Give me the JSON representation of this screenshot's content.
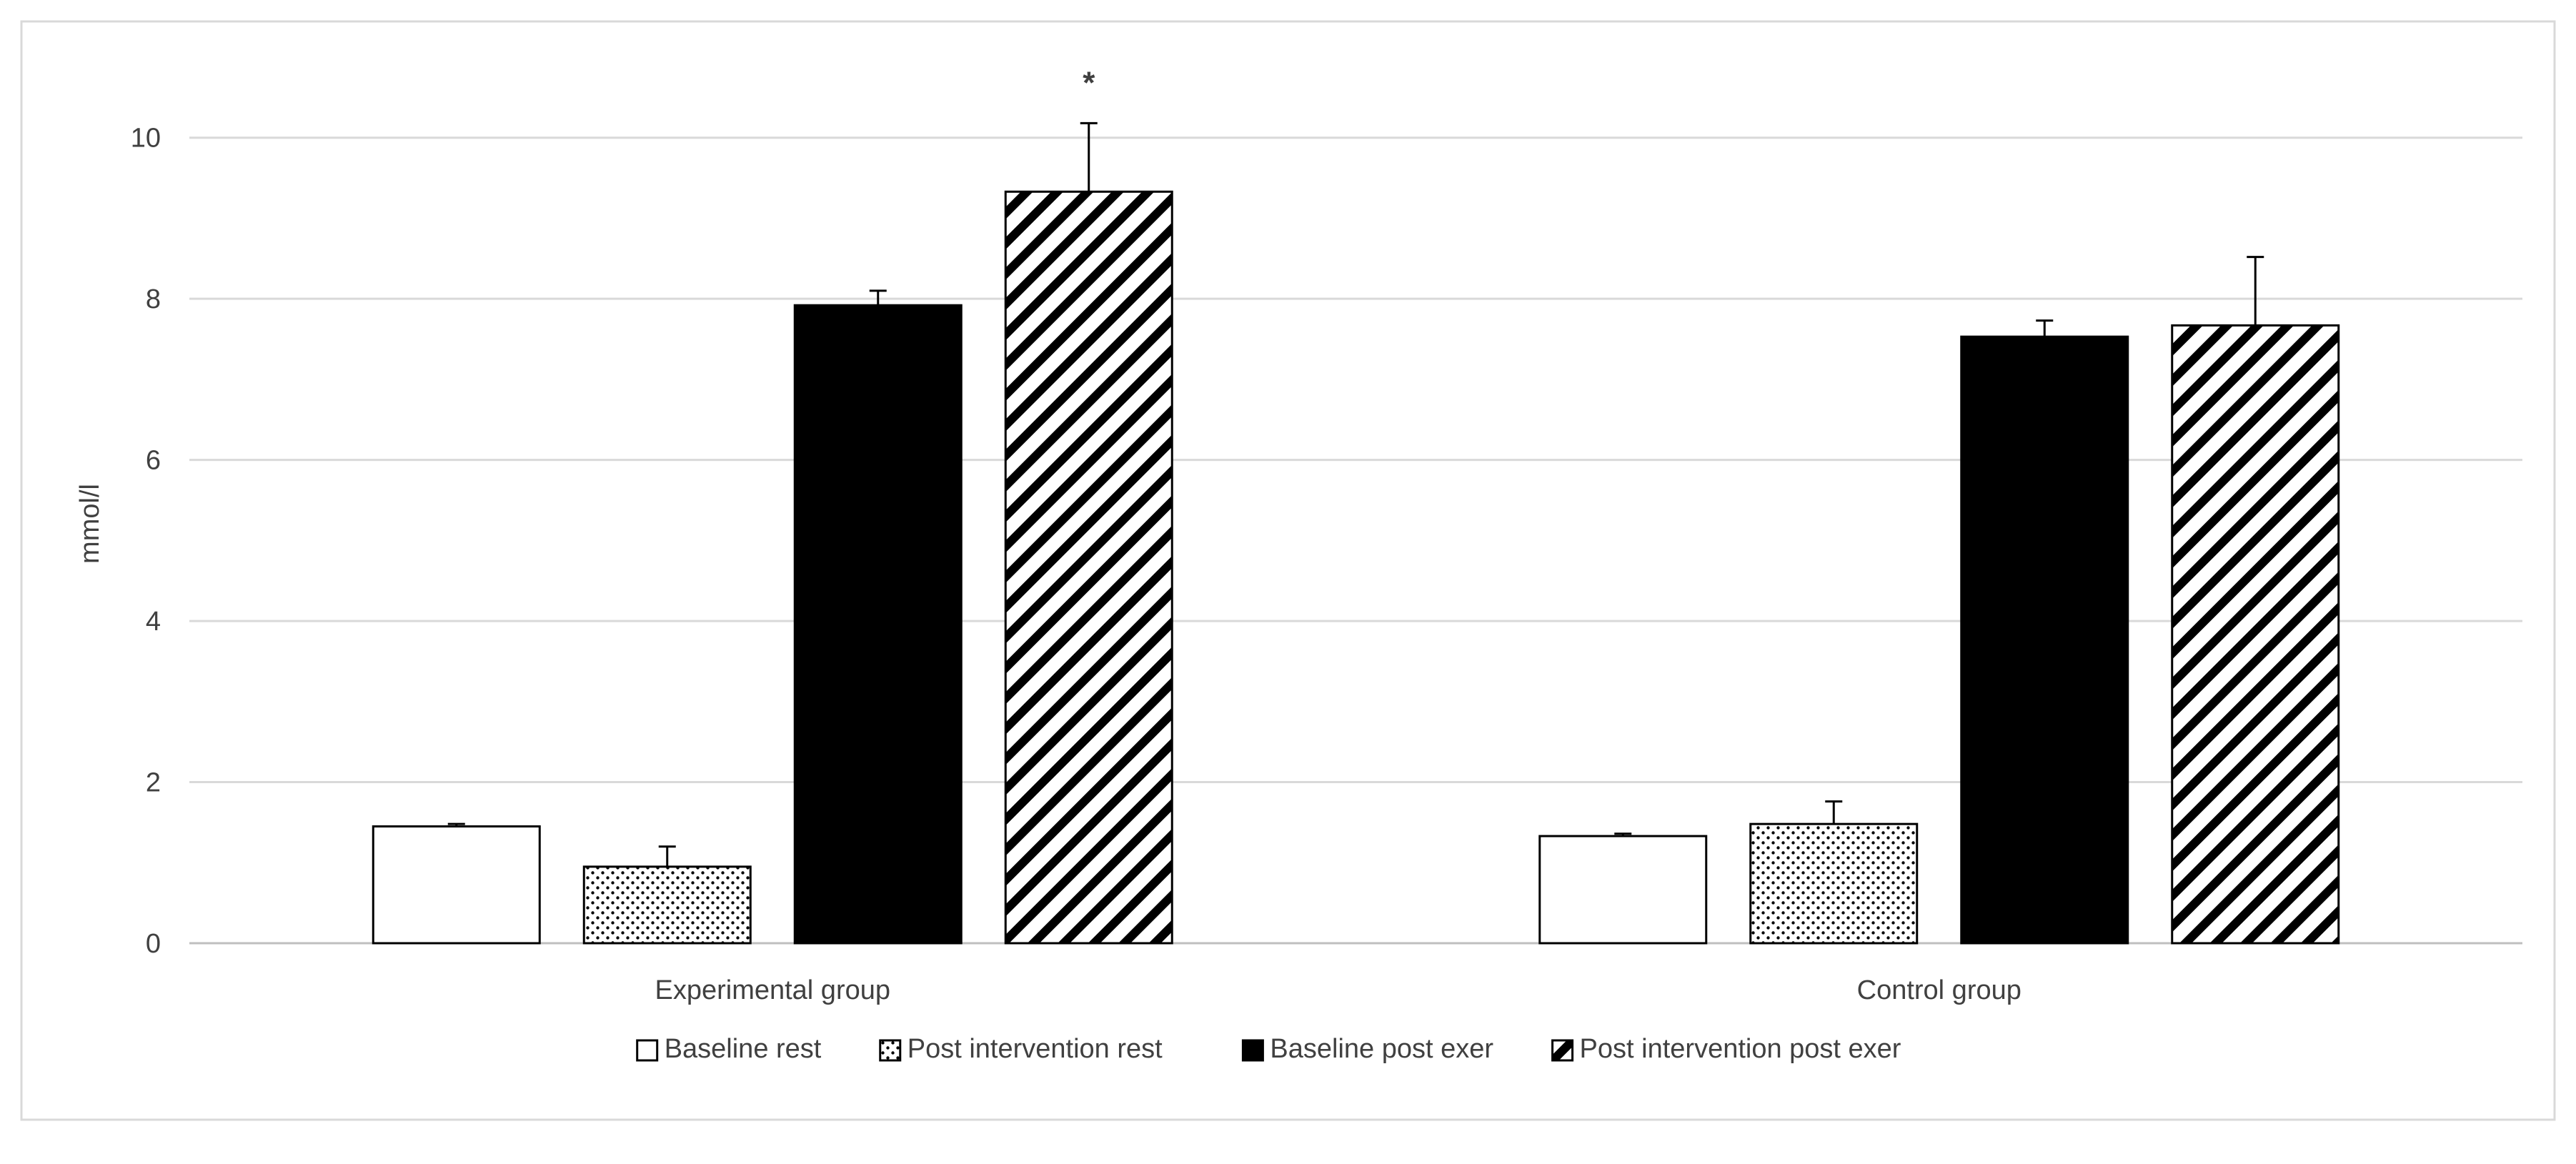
{
  "chart_data": {
    "type": "bar",
    "title": "",
    "xlabel": "",
    "ylabel": "mmol/l",
    "ylim": [
      0,
      11
    ],
    "yticks": [
      0,
      2,
      4,
      6,
      8,
      10
    ],
    "grid": true,
    "legend_position": "bottom",
    "categories": [
      "Experimental group",
      "Control group"
    ],
    "series": [
      {
        "name": "Baseline rest",
        "pattern": "white",
        "values": [
          1.45,
          1.33
        ],
        "errors": [
          0.03,
          0.03
        ]
      },
      {
        "name": "Post intervention rest",
        "pattern": "dots",
        "values": [
          0.95,
          1.48
        ],
        "errors": [
          0.25,
          0.28
        ]
      },
      {
        "name": "Baseline post exer",
        "pattern": "black",
        "values": [
          7.92,
          7.53
        ],
        "errors": [
          0.18,
          0.2
        ]
      },
      {
        "name": "Post intervention post exer",
        "pattern": "hatch",
        "values": [
          9.33,
          7.67
        ],
        "errors": [
          0.85,
          0.85
        ]
      }
    ],
    "annotations": [
      {
        "text": "*",
        "category": "Experimental group",
        "series": "Post intervention post exer"
      }
    ],
    "colors": {
      "bar_edge": "#000000",
      "grid": "#d9d9d9",
      "axis": "#bfbfbf",
      "text": "#404040",
      "frame": "#d9d9d9"
    }
  }
}
